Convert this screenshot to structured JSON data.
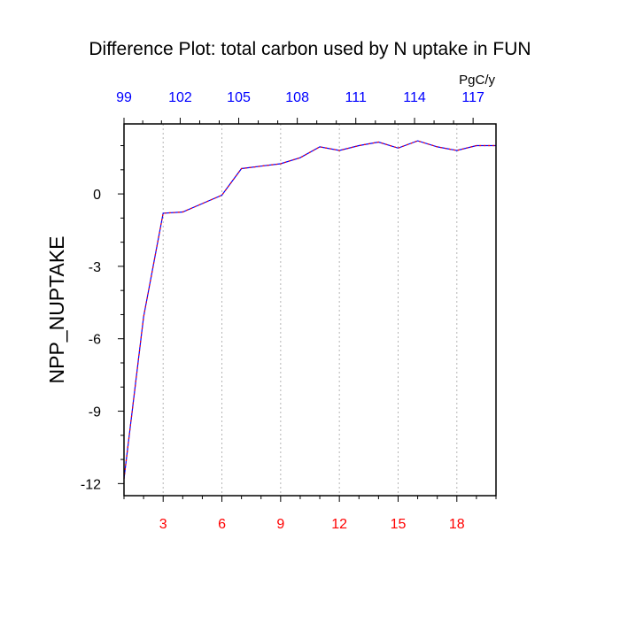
{
  "chart_data": {
    "type": "line",
    "title": "Difference Plot: total carbon used by N uptake in FUN",
    "units": "PgC/y",
    "ylabel": "NPP_NUPTAKE",
    "xlabel": "",
    "xlim": [
      1,
      20
    ],
    "ylim": [
      -12.5,
      2.9
    ],
    "grid": "vertical dotted lines at bottom ticks",
    "colors": {
      "line_primary": "#0000ff",
      "line_secondary": "#ff0000",
      "bottom_ticks": "#ff0000",
      "top_ticks": "#0000ff",
      "axis": "#000000",
      "grid": "#b4b4b4"
    },
    "bottom_ticks": [
      3,
      6,
      9,
      12,
      15,
      18
    ],
    "left_ticks": [
      0,
      -3,
      -6,
      -9,
      -12
    ],
    "top_ticks": [
      {
        "x": 1,
        "label": "99"
      },
      {
        "x": 3.87,
        "label": "102"
      },
      {
        "x": 6.86,
        "label": "105"
      },
      {
        "x": 9.85,
        "label": "108"
      },
      {
        "x": 12.84,
        "label": "111"
      },
      {
        "x": 15.84,
        "label": "114"
      },
      {
        "x": 18.83,
        "label": "117"
      }
    ],
    "series": [
      {
        "x": [
          1,
          2,
          3,
          4,
          5,
          6,
          7,
          8,
          9,
          10,
          11,
          12,
          13,
          14,
          15,
          16,
          17,
          18,
          19,
          20
        ],
        "values": [
          -11.8,
          -5.1,
          -0.8,
          -0.75,
          -0.4,
          -0.05,
          1.05,
          1.15,
          1.25,
          1.5,
          1.95,
          1.8,
          2.0,
          2.15,
          1.9,
          2.2,
          1.95,
          1.8,
          2.0,
          2.0
        ]
      }
    ]
  }
}
